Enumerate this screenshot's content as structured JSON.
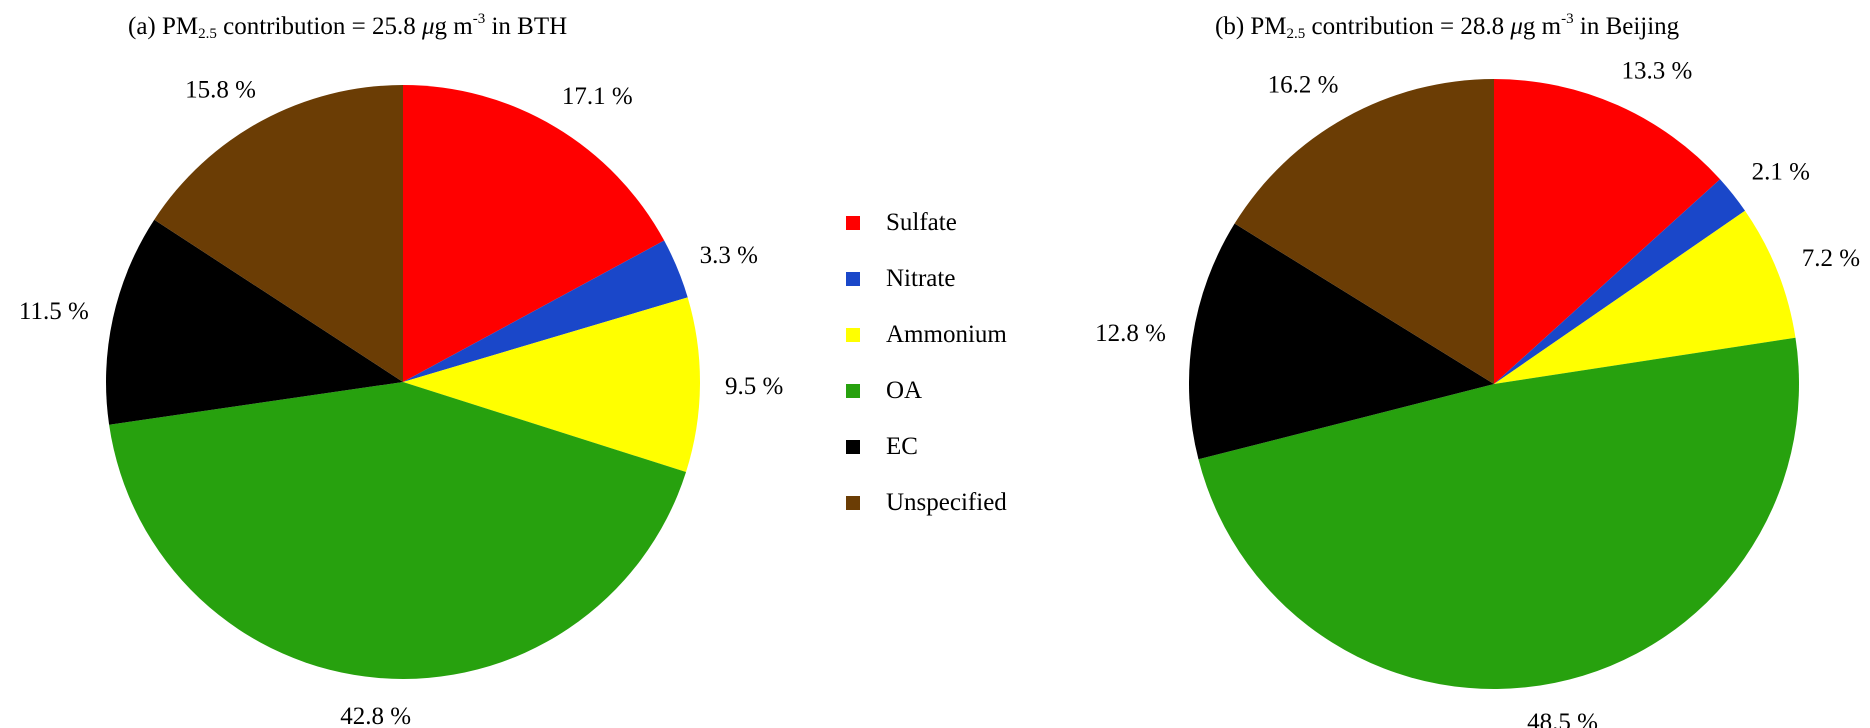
{
  "chart_data": [
    {
      "type": "pie",
      "title": {
        "prefix": "(a) PM",
        "subscript": "2.5",
        "middle": " contribution = 25.8 ",
        "mu": "μ",
        "unit": "g m",
        "superscript": "-3",
        "suffix": " in BTH"
      },
      "categories": [
        "Sulfate",
        "Nitrate",
        "Ammonium",
        "OA",
        "EC",
        "Unspecified"
      ],
      "values": [
        17.1,
        3.3,
        9.5,
        42.8,
        11.5,
        15.8
      ],
      "labels": [
        "17.1 %",
        "3.3 %",
        "9.5 %",
        "42.8 %",
        "11.5 %",
        "15.8 %"
      ],
      "start": "12 o'clock",
      "direction": "clockwise"
    },
    {
      "type": "pie",
      "title": {
        "prefix": "(b) PM",
        "subscript": "2.5",
        "middle": " contribution = 28.8 ",
        "mu": "μ",
        "unit": "g m",
        "superscript": "-3",
        "suffix": " in Beijing"
      },
      "categories": [
        "Sulfate",
        "Nitrate",
        "Ammonium",
        "OA",
        "EC",
        "Unspecified"
      ],
      "values": [
        13.3,
        2.1,
        7.2,
        48.5,
        12.8,
        16.2
      ],
      "labels": [
        "13.3 %",
        "2.1 %",
        "7.2 %",
        "48.5 %",
        "12.8 %",
        "16.2 %"
      ],
      "start": "12 o'clock",
      "direction": "clockwise"
    }
  ],
  "legend": {
    "placement": "center",
    "items": [
      {
        "name": "Sulfate",
        "color": "#ff0000"
      },
      {
        "name": "Nitrate",
        "color": "#1a47c9"
      },
      {
        "name": "Ammonium",
        "color": "#ffff00"
      },
      {
        "name": "OA",
        "color": "#27a10e"
      },
      {
        "name": "EC",
        "color": "#000000"
      },
      {
        "name": "Unspecified",
        "color": "#6b3d05"
      }
    ]
  }
}
